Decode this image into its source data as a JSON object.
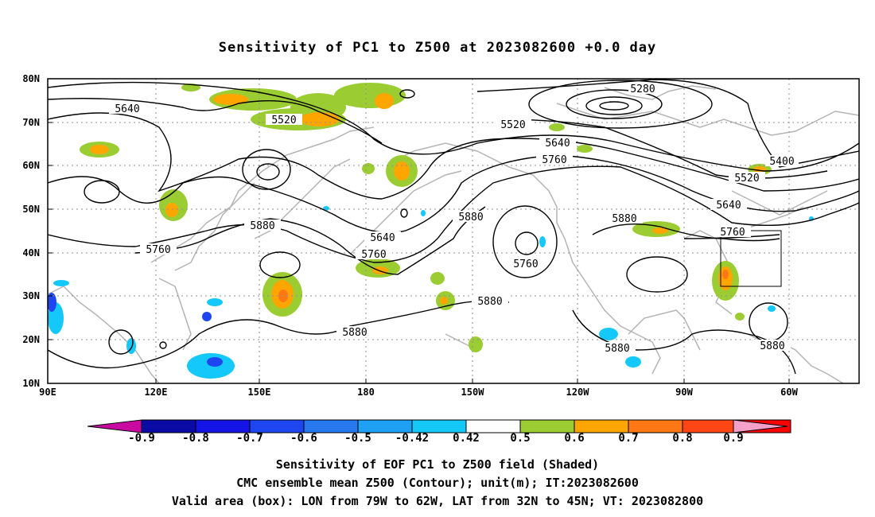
{
  "title": "Sensitivity of PC1 to Z500 at 2023082600 +0.0 day",
  "lat_labels": [
    "80N",
    "70N",
    "60N",
    "50N",
    "40N",
    "30N",
    "20N",
    "10N"
  ],
  "lon_labels": [
    "90E",
    "120E",
    "150E",
    "180",
    "150W",
    "120W",
    "90W",
    "60W"
  ],
  "contour_labels": [
    {
      "text": "5280"
    },
    {
      "text": "5400"
    },
    {
      "text": "5520"
    },
    {
      "text": "5520"
    },
    {
      "text": "5520"
    },
    {
      "text": "5640"
    },
    {
      "text": "5640"
    },
    {
      "text": "5640"
    },
    {
      "text": "5640"
    },
    {
      "text": "5760"
    },
    {
      "text": "5760"
    },
    {
      "text": "5760"
    },
    {
      "text": "5760"
    },
    {
      "text": "5760"
    },
    {
      "text": "5880"
    },
    {
      "text": "5880"
    },
    {
      "text": "5880"
    },
    {
      "text": "5880"
    },
    {
      "text": "5880"
    },
    {
      "text": "5880"
    },
    {
      "text": "5880"
    }
  ],
  "colorbar": {
    "labels": [
      "-0.9",
      "-0.8",
      "-0.7",
      "-0.6",
      "-0.5",
      "-0.42",
      "0.42",
      "0.5",
      "0.6",
      "0.7",
      "0.8",
      "0.9"
    ],
    "colors": [
      "#0a0aa5",
      "#1414e6",
      "#1e46f0",
      "#2878f0",
      "#1ea0f5",
      "#14c8fa",
      "#ffffff",
      "#9bcd32",
      "#ffa500",
      "#ff7814",
      "#ff4614",
      "#ff0000"
    ],
    "under_color": "#c80aa0",
    "over_color": "#f5a0c8"
  },
  "captions": [
    "Sensitivity of EOF PC1 to Z500 field (Shaded)",
    "CMC ensemble mean Z500 (Contour); unit(m); IT:2023082600",
    "Valid area (box): LON from 79W to 62W, LAT from 32N to 45N; VT: 2023082800"
  ],
  "valid_area": {
    "lon_min": "79W",
    "lon_max": "62W",
    "lat_min": "32N",
    "lat_max": "45N"
  }
}
